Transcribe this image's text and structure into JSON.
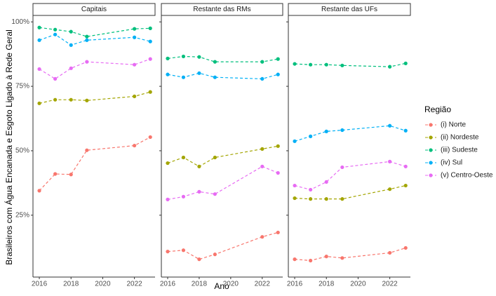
{
  "chart_data": {
    "type": "line",
    "y_label": "Brasileiros com Água Encanada e Esgoto Ligado à Rede Geral",
    "x_label": "Ano",
    "legend_title": "Região",
    "x": [
      2016,
      2017,
      2018,
      2019,
      2022,
      2023
    ],
    "xlim": [
      2015.6,
      2023.3
    ],
    "xticks": [
      2016,
      2018,
      2020,
      2022
    ],
    "ylim": [
      1,
      102.5
    ],
    "yticks": [
      {
        "value": 25,
        "label": "25%"
      },
      {
        "value": 50,
        "label": "50%"
      },
      {
        "value": 75,
        "label": "75%"
      },
      {
        "value": 100,
        "label": "100%"
      }
    ],
    "series": [
      {
        "name": "(i) Norte",
        "color": "#f8766d"
      },
      {
        "name": "(ii) Nordeste",
        "color": "#a3a500"
      },
      {
        "name": "(iii) Sudeste",
        "color": "#00bf7d"
      },
      {
        "name": "(iv) Sul",
        "color": "#00b0f6"
      },
      {
        "name": "(v) Centro-Oeste",
        "color": "#e76bf3"
      }
    ],
    "facets": [
      {
        "title": "Capitais",
        "series": [
          {
            "values": [
              34.5,
              41,
              40.8,
              50.2,
              52,
              55.3
            ]
          },
          {
            "values": [
              68.4,
              69.8,
              69.8,
              69.5,
              71.1,
              72.8
            ]
          },
          {
            "values": [
              97.8,
              97,
              96.2,
              94.3,
              97.3,
              97.5
            ]
          },
          {
            "values": [
              92.9,
              95.1,
              91,
              92.9,
              94,
              92.4
            ]
          },
          {
            "values": [
              81.7,
              77.9,
              82,
              84.5,
              83.4,
              85.6
            ]
          }
        ]
      },
      {
        "title": "Restante das RMs",
        "series": [
          {
            "values": [
              10.9,
              11.4,
              7.9,
              9.8,
              16.6,
              18.3
            ]
          },
          {
            "values": [
              45.2,
              47.4,
              43.9,
              47.4,
              50.7,
              51.8
            ]
          },
          {
            "values": [
              85.8,
              86.6,
              86.4,
              84.5,
              84.5,
              85.6
            ]
          },
          {
            "values": [
              79.6,
              78.5,
              80.1,
              78.5,
              77.9,
              79.6
            ]
          },
          {
            "values": [
              31.1,
              32.2,
              34.1,
              33.2,
              43.9,
              41.4
            ]
          }
        ]
      },
      {
        "title": "Restante das UFs",
        "series": [
          {
            "values": [
              7.9,
              7.4,
              9,
              8.4,
              10.4,
              12.3
            ]
          },
          {
            "values": [
              31.6,
              31.3,
              31.3,
              31.3,
              35.1,
              36.5
            ]
          },
          {
            "values": [
              83.7,
              83.4,
              83.4,
              83.1,
              82.6,
              83.9
            ]
          },
          {
            "values": [
              53.7,
              55.6,
              57.5,
              58,
              59.7,
              57.8
            ]
          },
          {
            "values": [
              36.5,
              34.9,
              37.9,
              43.6,
              45.8,
              43.9
            ]
          }
        ]
      }
    ]
  }
}
